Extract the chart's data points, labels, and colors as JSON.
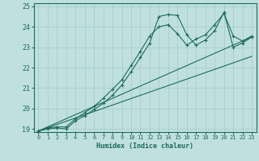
{
  "background_color": "#c0e0e0",
  "grid_color": "#a8cece",
  "line_color": "#1e6b5a",
  "xlabel": "Humidex (Indice chaleur)",
  "xlim": [
    -0.5,
    23.5
  ],
  "ylim": [
    18.85,
    25.15
  ],
  "xticks": [
    0,
    1,
    2,
    3,
    4,
    5,
    6,
    7,
    8,
    9,
    10,
    11,
    12,
    13,
    14,
    15,
    16,
    17,
    18,
    19,
    20,
    21,
    22,
    23
  ],
  "yticks": [
    19,
    20,
    21,
    22,
    23,
    24,
    25
  ],
  "line1_x": [
    0,
    1,
    2,
    3,
    4,
    5,
    6,
    7,
    8,
    9,
    10,
    11,
    12,
    13,
    14,
    15,
    16,
    17,
    18,
    19,
    20,
    21,
    22,
    23
  ],
  "line1_y": [
    18.9,
    19.0,
    19.05,
    19.0,
    19.4,
    19.65,
    19.95,
    20.25,
    20.65,
    21.15,
    21.8,
    22.5,
    23.2,
    24.5,
    24.6,
    24.55,
    23.6,
    23.1,
    23.35,
    23.8,
    24.7,
    23.0,
    23.2,
    23.5
  ],
  "line2_x": [
    0,
    1,
    2,
    3,
    4,
    5,
    6,
    7,
    8,
    9,
    10,
    11,
    12,
    13,
    14,
    15,
    16,
    17,
    18,
    19,
    20,
    21,
    22,
    23
  ],
  "line2_y": [
    18.9,
    19.05,
    19.1,
    19.1,
    19.5,
    19.8,
    20.1,
    20.5,
    20.95,
    21.4,
    22.1,
    22.8,
    23.55,
    24.0,
    24.1,
    23.65,
    23.1,
    23.4,
    23.6,
    24.1,
    24.65,
    23.55,
    23.3,
    23.55
  ],
  "line3_x": [
    0,
    23
  ],
  "line3_y": [
    18.9,
    23.5
  ],
  "line4_x": [
    0,
    23
  ],
  "line4_y": [
    18.9,
    22.55
  ]
}
